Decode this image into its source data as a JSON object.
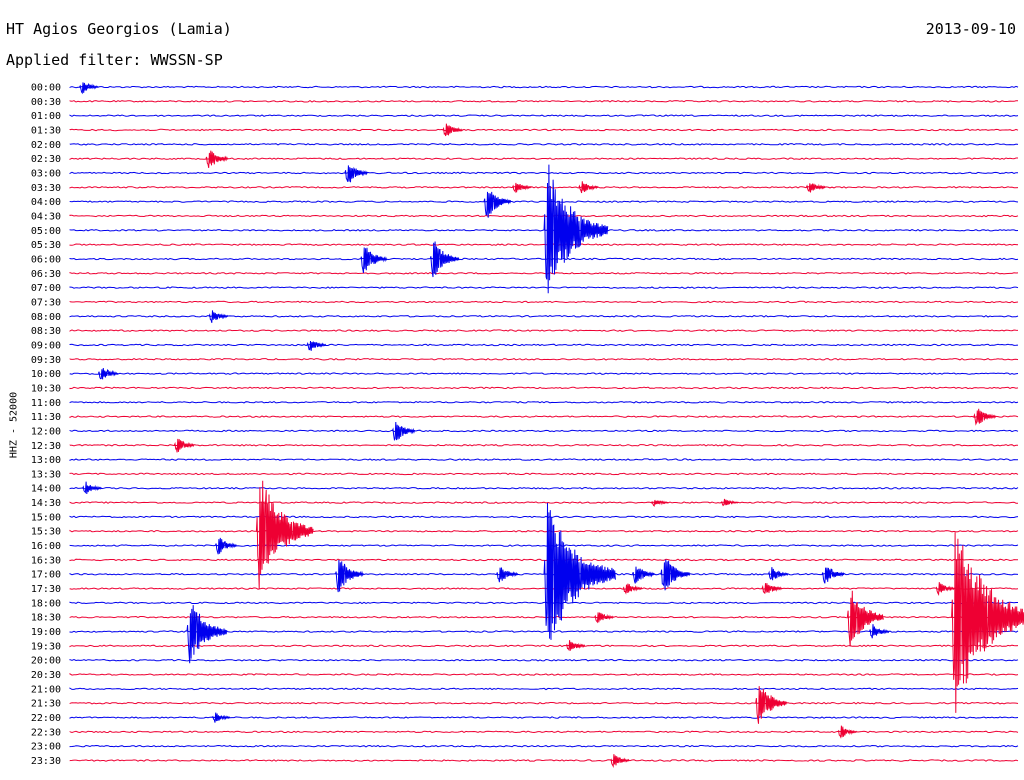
{
  "header": {
    "station": "HT Agios Georgios (Lamia)",
    "date": "2013-09-10",
    "filter": "Applied filter: WWSSN-SP"
  },
  "chart_data": {
    "type": "line",
    "ylabel": "HHZ - 52000",
    "colors": {
      "even_rows": "#0000ee",
      "odd_rows": "#ee0033"
    },
    "rows": [
      "00:00",
      "00:30",
      "01:00",
      "01:30",
      "02:00",
      "02:30",
      "03:00",
      "03:30",
      "04:00",
      "04:30",
      "05:00",
      "05:30",
      "06:00",
      "06:30",
      "07:00",
      "07:30",
      "08:00",
      "08:30",
      "09:00",
      "09:30",
      "10:00",
      "10:30",
      "11:00",
      "11:30",
      "12:00",
      "12:30",
      "13:00",
      "13:30",
      "14:00",
      "14:30",
      "15:00",
      "15:30",
      "16:00",
      "16:30",
      "17:00",
      "17:30",
      "18:00",
      "18:30",
      "19:00",
      "19:30",
      "20:00",
      "20:30",
      "21:00",
      "21:30",
      "22:00",
      "22:30",
      "23:00",
      "23:30"
    ],
    "x_range_minutes": [
      0,
      30
    ],
    "events": [
      {
        "row": 0,
        "t": 0.3,
        "amp": 0.5
      },
      {
        "row": 3,
        "t": 11.8,
        "amp": 0.6
      },
      {
        "row": 5,
        "t": 4.3,
        "amp": 0.8
      },
      {
        "row": 6,
        "t": 8.7,
        "amp": 0.9
      },
      {
        "row": 7,
        "t": 14.0,
        "amp": 0.5
      },
      {
        "row": 7,
        "t": 16.1,
        "amp": 0.5
      },
      {
        "row": 7,
        "t": 23.3,
        "amp": 0.5
      },
      {
        "row": 8,
        "t": 13.1,
        "amp": 1.3
      },
      {
        "row": 10,
        "t": 15.0,
        "amp": 5.0
      },
      {
        "row": 12,
        "t": 9.2,
        "amp": 1.2
      },
      {
        "row": 12,
        "t": 11.4,
        "amp": 1.5
      },
      {
        "row": 16,
        "t": 4.4,
        "amp": 0.5
      },
      {
        "row": 18,
        "t": 7.5,
        "amp": 0.5
      },
      {
        "row": 20,
        "t": 0.9,
        "amp": 0.6
      },
      {
        "row": 23,
        "t": 28.6,
        "amp": 0.8
      },
      {
        "row": 24,
        "t": 10.2,
        "amp": 0.9
      },
      {
        "row": 25,
        "t": 3.3,
        "amp": 0.6
      },
      {
        "row": 28,
        "t": 0.4,
        "amp": 0.5
      },
      {
        "row": 29,
        "t": 18.4,
        "amp": 0.3
      },
      {
        "row": 29,
        "t": 20.6,
        "amp": 0.3
      },
      {
        "row": 31,
        "t": 5.9,
        "amp": 4.3
      },
      {
        "row": 32,
        "t": 4.6,
        "amp": 0.7
      },
      {
        "row": 34,
        "t": 8.4,
        "amp": 1.4
      },
      {
        "row": 34,
        "t": 13.5,
        "amp": 0.7
      },
      {
        "row": 34,
        "t": 15.0,
        "amp": 5.8
      },
      {
        "row": 34,
        "t": 17.8,
        "amp": 0.8
      },
      {
        "row": 34,
        "t": 18.7,
        "amp": 1.5
      },
      {
        "row": 34,
        "t": 22.1,
        "amp": 0.6
      },
      {
        "row": 34,
        "t": 23.8,
        "amp": 0.8
      },
      {
        "row": 35,
        "t": 17.5,
        "amp": 0.5
      },
      {
        "row": 35,
        "t": 21.9,
        "amp": 0.6
      },
      {
        "row": 35,
        "t": 27.4,
        "amp": 0.5
      },
      {
        "row": 37,
        "t": 24.6,
        "amp": 2.3
      },
      {
        "row": 37,
        "t": 27.9,
        "amp": 7.0
      },
      {
        "row": 37,
        "t": 16.6,
        "amp": 0.5
      },
      {
        "row": 38,
        "t": 3.7,
        "amp": 2.6
      },
      {
        "row": 38,
        "t": 25.3,
        "amp": 0.6
      },
      {
        "row": 39,
        "t": 15.7,
        "amp": 0.5
      },
      {
        "row": 43,
        "t": 21.7,
        "amp": 1.7
      },
      {
        "row": 44,
        "t": 4.5,
        "amp": 0.4
      },
      {
        "row": 45,
        "t": 24.3,
        "amp": 0.5
      },
      {
        "row": 47,
        "t": 17.1,
        "amp": 0.5
      }
    ]
  }
}
